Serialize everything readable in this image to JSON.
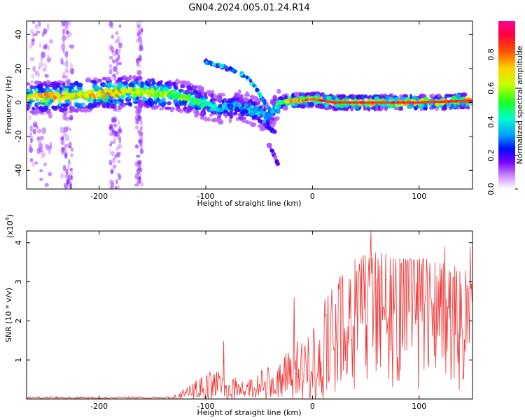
{
  "title": "GN04.2024.005.01.24.R14",
  "chart_data": [
    {
      "type": "heatmap",
      "name": "spectrogram",
      "xlabel": "Height of straight line (km)",
      "ylabel": "Frequency (Hz)",
      "xlim": [
        -268,
        150
      ],
      "ylim": [
        -51,
        48
      ],
      "x_ticks": [
        -200,
        -100,
        0,
        100
      ],
      "y_ticks": [
        -40,
        -20,
        0,
        20,
        40
      ],
      "colorbar": {
        "label": "Normalized spectral amplitude",
        "range": [
          0,
          1
        ],
        "ticks": [
          0.0,
          0.2,
          0.4,
          0.6,
          0.8
        ],
        "colormap": [
          "#ffffff",
          "#cc88ff",
          "#7a00ff",
          "#0010ff",
          "#00a0ff",
          "#00ffcc",
          "#20ff20",
          "#c8ff00",
          "#ffd000",
          "#ff5000",
          "#ff0040",
          "#ff0090"
        ]
      },
      "ridge": {
        "x": [
          -268,
          -250,
          -220,
          -200,
          -180,
          -160,
          -140,
          -120,
          -110,
          -100,
          -90,
          -80,
          -70,
          -60,
          -50,
          -40,
          -35,
          -30,
          -20,
          -10,
          0,
          20,
          50,
          100,
          150
        ],
        "y": [
          3,
          3,
          4,
          5,
          6,
          6,
          5,
          3,
          1,
          -1,
          -3,
          -3,
          -2,
          -4,
          -6,
          -8,
          -3,
          0,
          1,
          1,
          2,
          0,
          0,
          0,
          1
        ],
        "strength": [
          0.6,
          0.7,
          0.7,
          0.7,
          0.7,
          0.6,
          0.6,
          0.5,
          0.5,
          0.45,
          0.4,
          0.35,
          0.35,
          0.35,
          0.35,
          0.3,
          0.35,
          0.5,
          0.7,
          0.75,
          0.8,
          0.85,
          0.85,
          0.85,
          0.85
        ]
      },
      "branch": {
        "x": [
          -100,
          -90,
          -80,
          -70,
          -60,
          -55,
          -50,
          -45,
          -40
        ],
        "y": [
          24,
          22,
          20,
          18,
          14,
          10,
          5,
          0,
          -4
        ]
      },
      "descending_branch": {
        "x": [
          -80,
          -70,
          -60,
          -50,
          -40,
          -35
        ],
        "y": [
          -2,
          -4,
          -6,
          -10,
          -15,
          -18
        ]
      },
      "tail": {
        "x": [
          -42,
          -38,
          -35,
          -32
        ],
        "y": [
          -24,
          -28,
          -32,
          -38
        ]
      }
    },
    {
      "type": "line",
      "name": "snr",
      "xlabel": "Height of straight line (km)",
      "ylabel": "SNR (10 * v/v)",
      "scale_label": "(x10",
      "scale_exp": "4",
      "scale_close": ")",
      "xlim": [
        -268,
        150
      ],
      "ylim": [
        0,
        4.3
      ],
      "x_ticks": [
        -200,
        -100,
        0,
        100
      ],
      "y_ticks": [
        1,
        2,
        3,
        4
      ],
      "color": "#ee3333",
      "envelope": {
        "x": [
          -268,
          -200,
          -150,
          -125,
          -115,
          -100,
          -90,
          -80,
          -70,
          -60,
          -50,
          -40,
          -30,
          -20,
          -10,
          0,
          10,
          20,
          30,
          40,
          50,
          60,
          80,
          100,
          120,
          140,
          150
        ],
        "y": [
          0.03,
          0.05,
          0.08,
          0.15,
          0.4,
          0.65,
          0.8,
          0.55,
          0.55,
          0.6,
          0.75,
          0.85,
          1.0,
          1.4,
          1.6,
          2.2,
          2.6,
          2.9,
          3.3,
          3.6,
          3.7,
          3.8,
          3.6,
          3.6,
          3.6,
          3.3,
          3.3
        ]
      },
      "peaks": [
        {
          "x": -83,
          "y": 1.48
        },
        {
          "x": -17,
          "y": 2.6
        },
        {
          "x": 55,
          "y": 4.3
        },
        {
          "x": 124,
          "y": 3.9
        },
        {
          "x": 148,
          "y": 3.9
        }
      ]
    }
  ]
}
